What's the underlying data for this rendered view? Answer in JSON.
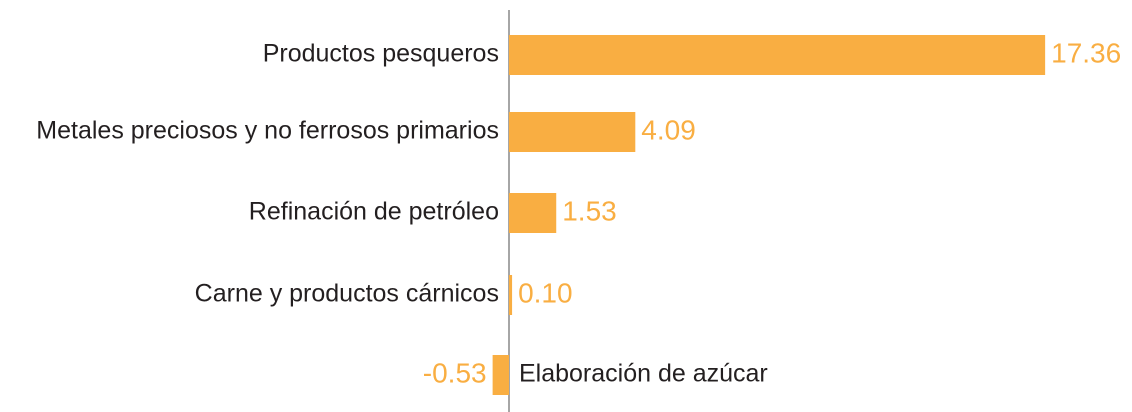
{
  "chart_data": {
    "type": "bar",
    "orientation": "horizontal",
    "categories": [
      "Productos pesqueros",
      "Metales preciosos y no ferrosos primarios",
      "Refinación de petróleo",
      "Carne y productos cárnicos",
      "Elaboración de azúcar"
    ],
    "values": [
      17.36,
      4.09,
      1.53,
      0.1,
      -0.53
    ],
    "value_labels": [
      "17.36",
      "4.09",
      "1.53",
      "0.10",
      "-0.53"
    ],
    "color": "#f9ae42",
    "xlim": [
      -1,
      18
    ]
  }
}
